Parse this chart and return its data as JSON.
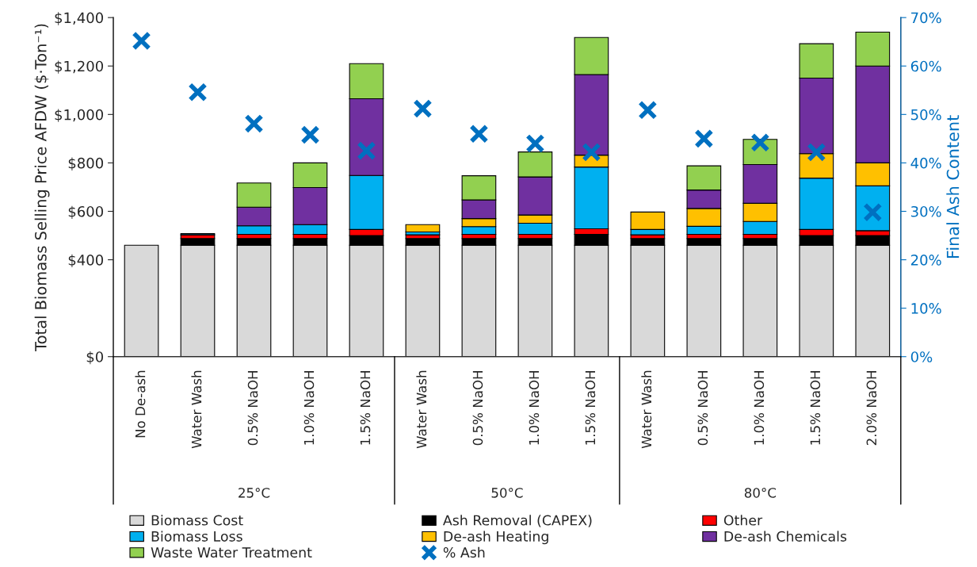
{
  "chart_data": {
    "type": "bar",
    "stacked": true,
    "ylabel": "Total Biomass Selling Price AFDW ($·Ton⁻¹)",
    "y2label": "Final Ash Content",
    "categories": [
      "No De-ash",
      "Water Wash",
      "0.5% NaOH",
      "1.0% NaOH",
      "1.5% NaOH",
      "Water Wash",
      "0.5% NaOH",
      "1.0% NaOH",
      "1.5% NaOH",
      "Water Wash",
      "0.5% NaOH",
      "1.0% NaOH",
      "1.5% NaOH",
      "2.0% NaOH"
    ],
    "annotations": [
      "25°C",
      "50°C",
      "80°C"
    ],
    "ylim": [
      0,
      1400
    ],
    "yticks": [
      {
        "value": 0,
        "label": "$0"
      },
      {
        "value": 400,
        "label": "$400"
      },
      {
        "value": 600,
        "label": "$600"
      },
      {
        "value": 800,
        "label": "$800"
      },
      {
        "value": 1000,
        "label": "$1,000"
      },
      {
        "value": 1200,
        "label": "$1,200"
      },
      {
        "value": 1400,
        "label": "$1,400"
      }
    ],
    "y2lim": [
      0,
      70
    ],
    "y2ticks": [
      {
        "value": 0,
        "label": "0%"
      },
      {
        "value": 10,
        "label": "10%"
      },
      {
        "value": 20,
        "label": "20%"
      },
      {
        "value": 30,
        "label": "30%"
      },
      {
        "value": 40,
        "label": "40%"
      },
      {
        "value": 50,
        "label": "50%"
      },
      {
        "value": 60,
        "label": "60%"
      },
      {
        "value": 70,
        "label": "70%"
      }
    ],
    "legend": "bottom",
    "grid": false,
    "series": [
      {
        "name": "Biomass Cost",
        "color": "#d9d9d9",
        "values": [
          460,
          460,
          460,
          460,
          460,
          460,
          460,
          460,
          460,
          460,
          460,
          460,
          460,
          460
        ]
      },
      {
        "name": "Ash Removal (CAPEX)",
        "color": "#000000",
        "values": [
          null,
          28,
          28,
          28,
          40,
          28,
          28,
          28,
          45,
          28,
          28,
          28,
          40,
          40
        ]
      },
      {
        "name": "Other",
        "color": "#ff0000",
        "values": [
          null,
          15,
          17,
          17,
          25,
          15,
          17,
          17,
          23,
          15,
          17,
          17,
          25,
          20
        ]
      },
      {
        "name": "Biomass Loss",
        "color": "#00b0f0",
        "values": [
          null,
          5,
          35,
          40,
          223,
          12,
          32,
          46,
          255,
          22,
          33,
          53,
          212,
          185
        ]
      },
      {
        "name": "De-ash Heating",
        "color": "#ffc000",
        "values": [
          null,
          null,
          null,
          null,
          null,
          30,
          33,
          34,
          49,
          72,
          74,
          75,
          101,
          95
        ]
      },
      {
        "name": "De-ash Chemicals",
        "color": "#7030a0",
        "values": [
          null,
          null,
          77,
          153,
          317,
          null,
          77,
          157,
          333,
          null,
          76,
          160,
          312,
          400
        ]
      },
      {
        "name": "Waste Water Treatment",
        "color": "#92d050",
        "values": [
          null,
          null,
          100,
          102,
          145,
          null,
          100,
          103,
          153,
          null,
          100,
          104,
          142,
          140
        ]
      },
      {
        "name": "% Ash",
        "type": "scatter",
        "axis": "y2",
        "marker": "cross",
        "color": "#0070c0",
        "values": [
          65.2,
          54.6,
          48.1,
          45.8,
          42.5,
          51.2,
          46.0,
          44.0,
          42.2,
          50.9,
          45.0,
          44.2,
          42.2,
          29.8
        ]
      }
    ]
  }
}
